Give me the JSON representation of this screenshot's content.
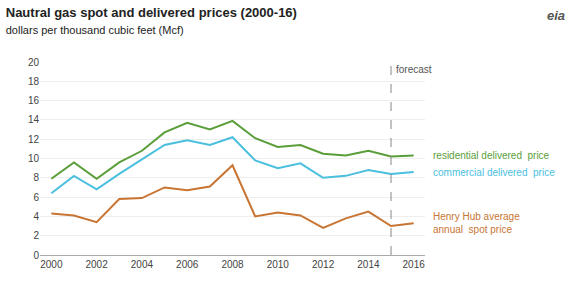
{
  "chart_data": {
    "type": "line",
    "title": "Nautral gas spot and delivered prices (2000-16)",
    "subtitle": "dollars per thousand cubic feet (Mcf)",
    "x": [
      2000,
      2001,
      2002,
      2003,
      2004,
      2005,
      2006,
      2007,
      2008,
      2009,
      2010,
      2011,
      2012,
      2013,
      2014,
      2015,
      2016
    ],
    "series": [
      {
        "name": "residential delivered  price",
        "color": "#5a9e3a",
        "values": [
          7.9,
          9.6,
          7.9,
          9.6,
          10.8,
          12.7,
          13.7,
          13.0,
          13.9,
          12.1,
          11.2,
          11.4,
          10.5,
          10.3,
          10.8,
          10.2,
          10.3
        ]
      },
      {
        "name": "commercial delivered  price",
        "color": "#4abfde",
        "values": [
          6.4,
          8.2,
          6.8,
          8.4,
          9.9,
          11.4,
          11.9,
          11.4,
          12.2,
          9.8,
          9.0,
          9.5,
          8.0,
          8.2,
          8.8,
          8.4,
          8.6
        ]
      },
      {
        "name": "Henry Hub average\nannual  spot price",
        "color": "#c87533",
        "values": [
          4.3,
          4.1,
          3.4,
          5.8,
          5.9,
          7.0,
          6.7,
          7.1,
          9.3,
          4.0,
          4.4,
          4.1,
          2.8,
          3.8,
          4.5,
          3.0,
          3.3
        ]
      }
    ],
    "annotations": [
      {
        "text": "forecast",
        "x": 2015,
        "line_style": "dashed"
      },
      {
        "text": "eia"
      }
    ],
    "xlim": [
      1999.5,
      2016.5
    ],
    "xticks": [
      2000,
      2002,
      2004,
      2006,
      2008,
      2010,
      2012,
      2014,
      2016
    ],
    "ylim": [
      0,
      20
    ],
    "yticks": [
      0,
      2,
      4,
      6,
      8,
      10,
      12,
      14,
      16,
      18,
      20
    ],
    "grid": "y"
  }
}
